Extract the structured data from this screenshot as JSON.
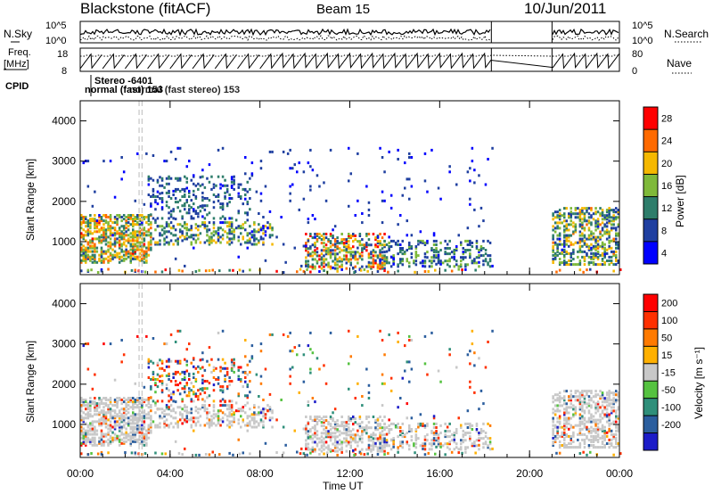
{
  "header": {
    "station": "Blackstone (fitACF)",
    "beam": "Beam 15",
    "date": "10/Jun/2011"
  },
  "noise_panel": {
    "left_label": "N.Sky",
    "right_label": "N.Search",
    "left_ticks": [
      "10^5",
      "10^0"
    ],
    "right_ticks": [
      "10^5",
      "10^0"
    ]
  },
  "freq_panel": {
    "left_label_line1": "Freq.",
    "left_label_line2": "[MHz]",
    "right_label": "Nave",
    "left_ticks": [
      "18",
      "8"
    ],
    "right_ticks": [
      "80",
      "0"
    ]
  },
  "cpid": {
    "label": "CPID",
    "normal_text": "normal (fast) 153",
    "overlap_text": "normal (fast stereo) 153",
    "stereo_text": "Stereo -6401"
  },
  "chart_data": [
    {
      "type": "heatmap",
      "title": "",
      "xlabel": "Time UT",
      "ylabel": "Slant Range [km]",
      "x_ticks": [
        "00:00",
        "04:00",
        "08:00",
        "12:00",
        "16:00",
        "20:00",
        "00:00"
      ],
      "xlim_hours": [
        0,
        24
      ],
      "ylim": [
        180,
        4500
      ],
      "y_ticks": [
        1000,
        2000,
        3000,
        4000
      ],
      "data_gap_hours": [
        18.3,
        21.0
      ],
      "colorbar": {
        "label": "Power [dB]",
        "ticks": [
          4,
          8,
          12,
          16,
          20,
          24,
          28
        ],
        "range": [
          0,
          30
        ],
        "colors": [
          "#0000ff",
          "#1f3fa0",
          "#2e7d6b",
          "#7fb93a",
          "#f5b800",
          "#ff6a00",
          "#ff0000"
        ]
      }
    },
    {
      "type": "heatmap",
      "title": "",
      "xlabel": "Time UT",
      "ylabel": "Slant Range [km]",
      "x_ticks": [
        "00:00",
        "04:00",
        "08:00",
        "12:00",
        "16:00",
        "20:00",
        "00:00"
      ],
      "xlim_hours": [
        0,
        24
      ],
      "ylim": [
        180,
        4500
      ],
      "y_ticks": [
        1000,
        2000,
        3000,
        4000
      ],
      "data_gap_hours": [
        18.3,
        21.0
      ],
      "colorbar": {
        "label": "Velocity [m s⁻¹]",
        "ticks": [
          "200",
          "100",
          "50",
          "15",
          "-15",
          "-50",
          "-100",
          "-200"
        ],
        "range": [
          -250,
          250
        ],
        "colors": [
          "#1c1cc8",
          "#2b5e9e",
          "#2f8f7a",
          "#55c240",
          "#c8c8c8",
          "#ffb000",
          "#ff7a00",
          "#ff3000",
          "#ff0000"
        ]
      }
    }
  ],
  "colors": {
    "ground_scatter": "#c8c8c8",
    "axis": "#000000",
    "gap_marker": "#bbbbbb"
  }
}
